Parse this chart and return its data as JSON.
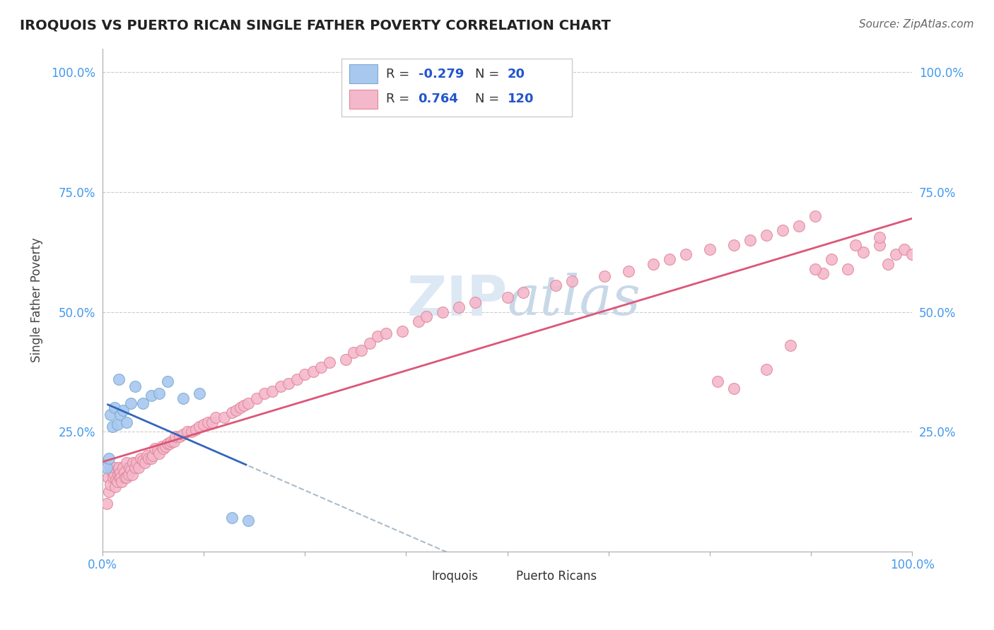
{
  "title": "IROQUOIS VS PUERTO RICAN SINGLE FATHER POVERTY CORRELATION CHART",
  "source": "Source: ZipAtlas.com",
  "ylabel": "Single Father Poverty",
  "iroquois_color": "#a8c8f0",
  "iroquois_edge": "#7aaad0",
  "pr_color": "#f4b8cc",
  "pr_edge": "#e08898",
  "iroquois_line_color": "#3366bb",
  "pr_line_color": "#dd5577",
  "dashed_line_color": "#aabbcc",
  "grid_color": "#cccccc",
  "tick_color": "#4499ee",
  "background_color": "#ffffff",
  "watermark_color": "#dde8f5",
  "legend_border_color": "#cccccc",
  "r1": "-0.279",
  "n1": "20",
  "r2": "0.764",
  "n2": "120",
  "iroquois_x": [
    0.005,
    0.008,
    0.01,
    0.012,
    0.015,
    0.018,
    0.02,
    0.022,
    0.025,
    0.03,
    0.035,
    0.04,
    0.05,
    0.06,
    0.07,
    0.08,
    0.1,
    0.12,
    0.16,
    0.18
  ],
  "iroquois_y": [
    0.175,
    0.195,
    0.285,
    0.26,
    0.3,
    0.265,
    0.36,
    0.285,
    0.295,
    0.27,
    0.31,
    0.345,
    0.31,
    0.325,
    0.33,
    0.355,
    0.32,
    0.33,
    0.07,
    0.065
  ],
  "pr_x": [
    0.005,
    0.007,
    0.008,
    0.01,
    0.01,
    0.012,
    0.013,
    0.015,
    0.015,
    0.016,
    0.017,
    0.018,
    0.019,
    0.02,
    0.02,
    0.021,
    0.022,
    0.023,
    0.024,
    0.025,
    0.027,
    0.028,
    0.03,
    0.03,
    0.032,
    0.033,
    0.035,
    0.037,
    0.038,
    0.04,
    0.042,
    0.045,
    0.047,
    0.05,
    0.052,
    0.055,
    0.057,
    0.06,
    0.062,
    0.065,
    0.068,
    0.07,
    0.073,
    0.075,
    0.078,
    0.08,
    0.083,
    0.085,
    0.088,
    0.09,
    0.095,
    0.1,
    0.105,
    0.11,
    0.115,
    0.12,
    0.125,
    0.13,
    0.135,
    0.14,
    0.15,
    0.16,
    0.165,
    0.17,
    0.175,
    0.18,
    0.19,
    0.2,
    0.21,
    0.22,
    0.23,
    0.24,
    0.25,
    0.26,
    0.27,
    0.28,
    0.3,
    0.31,
    0.32,
    0.33,
    0.34,
    0.35,
    0.37,
    0.39,
    0.4,
    0.42,
    0.44,
    0.46,
    0.5,
    0.52,
    0.56,
    0.58,
    0.62,
    0.65,
    0.68,
    0.7,
    0.72,
    0.75,
    0.78,
    0.8,
    0.82,
    0.84,
    0.86,
    0.88,
    0.89,
    0.9,
    0.92,
    0.94,
    0.96,
    0.97,
    0.98,
    0.99,
    1.0,
    0.85,
    0.78,
    0.82,
    0.76,
    0.93,
    0.96,
    0.88
  ],
  "pr_y": [
    0.1,
    0.155,
    0.125,
    0.14,
    0.175,
    0.165,
    0.155,
    0.16,
    0.175,
    0.135,
    0.15,
    0.145,
    0.16,
    0.17,
    0.175,
    0.155,
    0.165,
    0.155,
    0.145,
    0.175,
    0.165,
    0.155,
    0.155,
    0.185,
    0.16,
    0.175,
    0.17,
    0.16,
    0.185,
    0.175,
    0.185,
    0.175,
    0.195,
    0.19,
    0.185,
    0.2,
    0.195,
    0.195,
    0.2,
    0.215,
    0.21,
    0.205,
    0.22,
    0.215,
    0.22,
    0.225,
    0.225,
    0.23,
    0.23,
    0.24,
    0.24,
    0.245,
    0.25,
    0.25,
    0.255,
    0.26,
    0.265,
    0.27,
    0.27,
    0.28,
    0.28,
    0.29,
    0.295,
    0.3,
    0.305,
    0.31,
    0.32,
    0.33,
    0.335,
    0.345,
    0.35,
    0.36,
    0.37,
    0.375,
    0.385,
    0.395,
    0.4,
    0.415,
    0.42,
    0.435,
    0.45,
    0.455,
    0.46,
    0.48,
    0.49,
    0.5,
    0.51,
    0.52,
    0.53,
    0.54,
    0.555,
    0.565,
    0.575,
    0.585,
    0.6,
    0.61,
    0.62,
    0.63,
    0.64,
    0.65,
    0.66,
    0.67,
    0.68,
    0.7,
    0.58,
    0.61,
    0.59,
    0.625,
    0.64,
    0.6,
    0.62,
    0.63,
    0.62,
    0.43,
    0.34,
    0.38,
    0.355,
    0.64,
    0.655,
    0.59
  ],
  "xlim": [
    0.0,
    1.0
  ],
  "ylim": [
    0.0,
    1.05
  ],
  "yticks": [
    0.0,
    0.25,
    0.5,
    0.75,
    1.0
  ],
  "ytick_labels": [
    "",
    "25.0%",
    "50.0%",
    "75.0%",
    "100.0%"
  ]
}
